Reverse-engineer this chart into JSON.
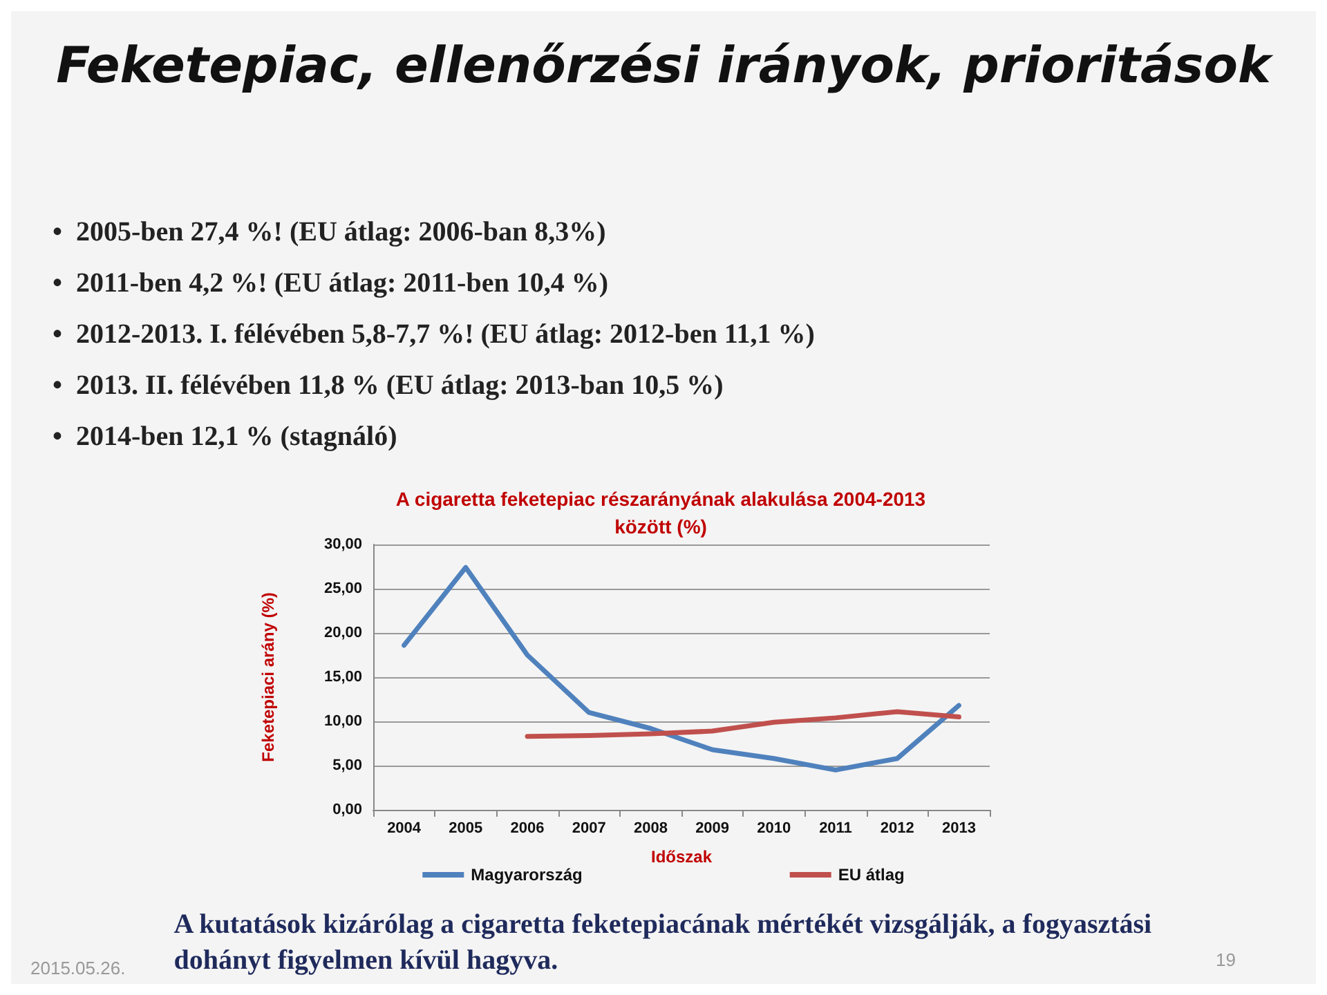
{
  "chart_data": {
    "type": "line",
    "title": "A cigaretta feketepiac részarányának alakulása 2004-2013\nközött (%)",
    "xlabel": "Időszak",
    "ylabel": "Feketepiaci arány (%)",
    "categories": [
      "2004",
      "2005",
      "2006",
      "2007",
      "2008",
      "2009",
      "2010",
      "2011",
      "2012",
      "2013"
    ],
    "series": [
      {
        "name": "Magyarország",
        "color": "#4f81bd",
        "values": [
          18.6,
          27.4,
          17.5,
          11.0,
          9.2,
          6.8,
          5.8,
          4.5,
          5.8,
          11.8
        ]
      },
      {
        "name": "EU átlag",
        "color": "#c0504d",
        "values": [
          null,
          null,
          8.3,
          8.4,
          8.6,
          8.9,
          9.9,
          10.4,
          11.1,
          10.5
        ]
      }
    ],
    "ylim": [
      0,
      30
    ],
    "yticks": [
      {
        "value": 0,
        "label": "0,00"
      },
      {
        "value": 5,
        "label": "5,00"
      },
      {
        "value": 10,
        "label": "10,00"
      },
      {
        "value": 15,
        "label": "15,00"
      },
      {
        "value": 20,
        "label": "20,00"
      },
      {
        "value": 25,
        "label": "25,00"
      },
      {
        "value": 30,
        "label": "30,00"
      }
    ],
    "grid": "y",
    "legend": "bottom",
    "marker": "none",
    "line_style": "solid",
    "annotations": [
      "Feketepiac, ellenőrzési irányok, prioritások",
      "•  2005-ben 27,4 %! (EU átlag: 2006-ban 8,3%)",
      "•  2011-ben 4,2 %! (EU átlag: 2011-ben 10,4 %)",
      "•  2012-2013. I. félévében 5,8-7,7 %! (EU átlag: 2012-ben 11,1 %)",
      "•  2013. II. félévében 11,8 % (EU átlag: 2013-ban 10,5 %)",
      "•  2014-ben 12,1 % (stagnáló)",
      "A kutatások kizárólag a cigaretta feketepiacának mértékét vizsgálják, a fogyasztási\ndohányt figyelmen kívül hagyva.",
      "2015.05.26.",
      "19"
    ]
  }
}
